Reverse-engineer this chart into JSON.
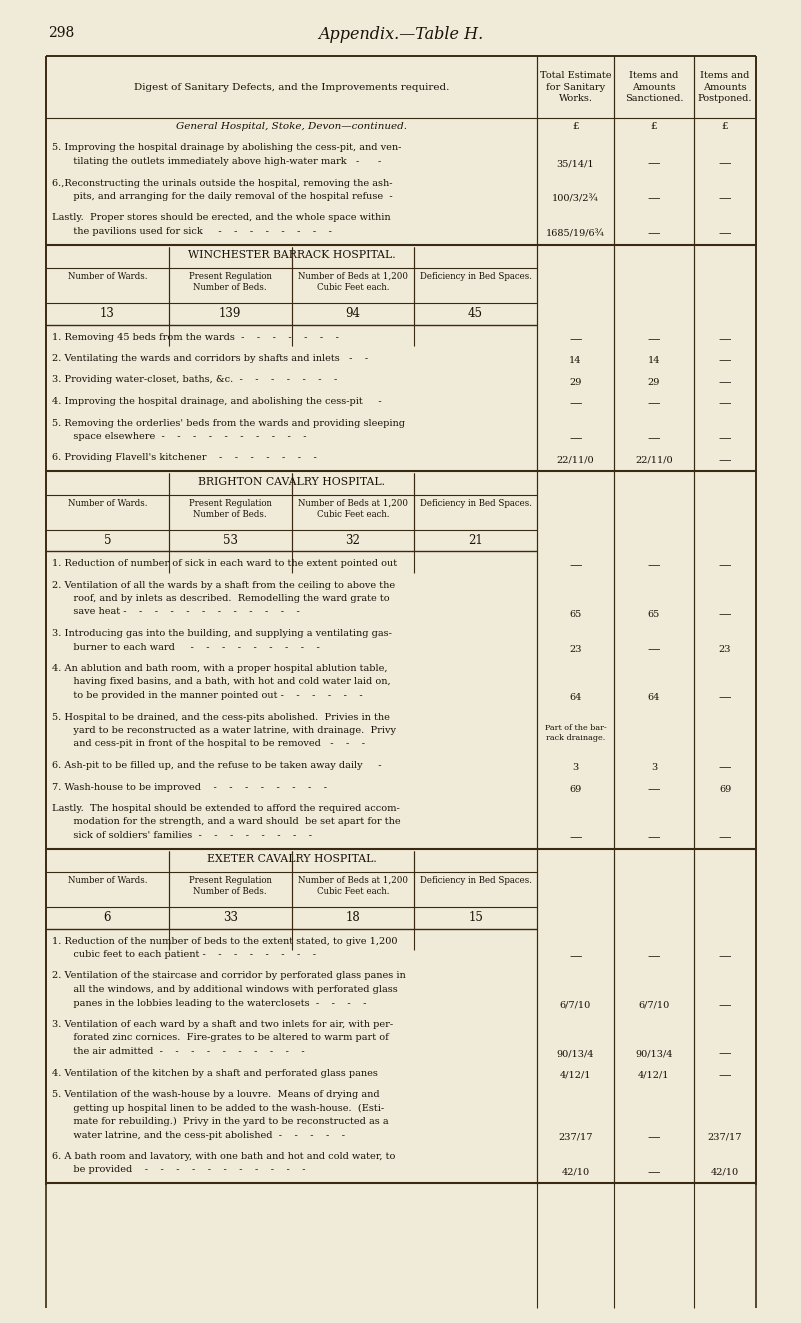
{
  "bg_color": "#f0ead8",
  "text_color": "#1a1008",
  "page_number": "298",
  "page_title": "Appendix.—Table H.",
  "header_col1": "Digest of Sanitary Defects, and the Improvements required.",
  "header_col2": "Total Estimate\nfor Sanitary\nWorks.",
  "header_col3": "Items and\nAmounts\nSanctioned.",
  "header_col4": "Items and\nAmounts\nPostponed.",
  "sections": [
    {
      "type": "general",
      "title": "General Hospital, Stoke, Devon—continued.",
      "currency_row": [
        "£",
        "£",
        "£"
      ],
      "items": [
        {
          "lines": [
            "5. Improving the hospital drainage by abolishing the cess-pit, and ven-",
            "   tilating the outlets immediately above high-water mark   -      -"
          ],
          "col2": "35/14/1",
          "col3": "—",
          "col4": "—",
          "val_line": 1
        },
        {
          "lines": [
            "6.,Reconstructing the urinals outside the hospital, removing the ash-",
            "   pits, and arranging for the daily removal of the hospital refuse  -"
          ],
          "col2": "100/3/2¾",
          "col3": "—",
          "col4": "—",
          "val_line": 1
        },
        {
          "lines": [
            "Lastly.  Proper stores should be erected, and the whole space within",
            "   the pavilions used for sick     -    -    -    -    -    -    -    -"
          ],
          "col2": "1685/19/6¾",
          "col3": "—",
          "col4": "—",
          "val_line": 1
        }
      ]
    },
    {
      "type": "hospital",
      "title": "WINCHESTER BARRACK HOSPITAL.",
      "sub_cols": [
        "Number of Wards.",
        "Present Regulation\nNumber of Beds.",
        "Number of Beds at 1,200\nCubic Feet each.",
        "Deficiency in Bed Spaces."
      ],
      "sub_vals": [
        "13",
        "139",
        "94",
        "45"
      ],
      "items": [
        {
          "lines": [
            "1. Removing 45 beds from the wards  -    -    -    -    -    -    -"
          ],
          "col2": "—",
          "col3": "—",
          "col4": "—",
          "val_line": 0
        },
        {
          "lines": [
            "2. Ventilating the wards and corridors by shafts and inlets   -    -"
          ],
          "col2": "14",
          "col3": "14",
          "col4": "—",
          "val_line": 0
        },
        {
          "lines": [
            "3. Providing water-closet, baths, &c.  -    -    -    -    -    -    -"
          ],
          "col2": "29",
          "col3": "29",
          "col4": "—",
          "val_line": 0
        },
        {
          "lines": [
            "4. Improving the hospital drainage, and abolishing the cess-pit     -"
          ],
          "col2": "—",
          "col3": "—",
          "col4": "—",
          "val_line": 0
        },
        {
          "lines": [
            "5. Removing the orderlies' beds from the wards and providing sleeping",
            "   space elsewhere  -    -    -    -    -    -    -    -    -    -"
          ],
          "col2": "—",
          "col3": "—",
          "col4": "—",
          "val_line": 1
        },
        {
          "lines": [
            "6. Providing Flavell's kitchener    -    -    -    -    -    -    -"
          ],
          "col2": "22/11/0",
          "col3": "22/11/0",
          "col4": "—",
          "val_line": 0
        }
      ]
    },
    {
      "type": "hospital",
      "title": "BRIGHTON CAVALRY HOSPITAL.",
      "sub_cols": [
        "Number of Wards.",
        "Present Regulation\nNumber of Beds.",
        "Number of Beds at 1,200\nCubic Feet each.",
        "Deficiency in Bed Spaces."
      ],
      "sub_vals": [
        "5",
        "53",
        "32",
        "21"
      ],
      "items": [
        {
          "lines": [
            "1. Reduction of number of sick in each ward to the extent pointed out"
          ],
          "col2": "—",
          "col3": "—",
          "col4": "—",
          "val_line": 0
        },
        {
          "lines": [
            "2. Ventilation of all the wards by a shaft from the ceiling to above the",
            "   roof, and by inlets as described.  Remodelling the ward grate to",
            "   save heat -    -    -    -    -    -    -    -    -    -    -    -"
          ],
          "col2": "65",
          "col3": "65",
          "col4": "—",
          "val_line": 2
        },
        {
          "lines": [
            "3. Introducing gas into the building, and supplying a ventilating gas-",
            "   burner to each ward     -    -    -    -    -    -    -    -    -"
          ],
          "col2": "23",
          "col3": "—",
          "col4": "23",
          "val_line": 1
        },
        {
          "lines": [
            "4. An ablution and bath room, with a proper hospital ablution table,",
            "   having fixed basins, and a bath, with hot and cold water laid on,",
            "   to be provided in the manner pointed out -    -    -    -    -    -"
          ],
          "col2": "64",
          "col3": "64",
          "col4": "—",
          "val_line": 2
        },
        {
          "lines": [
            "5. Hospital to be drained, and the cess-pits abolished.  Privies in the",
            "   yard to be reconstructed as a water latrine, with drainage.  Privy",
            "   and cess-pit in front of the hospital to be removed   -    -    -"
          ],
          "col2": "Part of the bar-\nrack drainage.",
          "col3": "",
          "col4": "",
          "val_line": 1
        },
        {
          "lines": [
            "6. Ash-pit to be filled up, and the refuse to be taken away daily     -"
          ],
          "col2": "3",
          "col3": "3",
          "col4": "—",
          "val_line": 0
        },
        {
          "lines": [
            "7. Wash-house to be improved    -    -    -    -    -    -    -    -"
          ],
          "col2": "69",
          "col3": "—",
          "col4": "69",
          "val_line": 0
        },
        {
          "lines": [
            "Lastly.  The hospital should be extended to afford the required accom-",
            "   modation for the strength, and a ward should  be set apart for the",
            "   sick of soldiers' families  -    -    -    -    -    -    -    -"
          ],
          "col2": "—",
          "col3": "—",
          "col4": "—",
          "val_line": 2
        }
      ]
    },
    {
      "type": "hospital",
      "title": "EXETER CAVALRY HOSPITAL.",
      "sub_cols": [
        "Number of Wards.",
        "Present Regulation\nNumber of Beds.",
        "Number of Beds at 1,200\nCubic Feet each.",
        "Deficiency in Bed Spaces."
      ],
      "sub_vals": [
        "6",
        "33",
        "18",
        "15"
      ],
      "items": [
        {
          "lines": [
            "1. Reduction of the number of beds to the extent stated, to give 1,200",
            "   cubic feet to each patient -    -    -    -    -    -    -    -"
          ],
          "col2": "—",
          "col3": "—",
          "col4": "—",
          "val_line": 1
        },
        {
          "lines": [
            "2. Ventilation of the staircase and corridor by perforated glass panes in",
            "   all the windows, and by additional windows with perforated glass",
            "   panes in the lobbies leading to the waterclosets  -    -    -    -"
          ],
          "col2": "6/7/10",
          "col3": "6/7/10",
          "col4": "—",
          "val_line": 2
        },
        {
          "lines": [
            "3. Ventilation of each ward by a shaft and two inlets for air, with per-",
            "   forated zinc cornices.  Fire-grates to be altered to warm part of",
            "   the air admitted  -    -    -    -    -    -    -    -    -    -"
          ],
          "col2": "90/13/4",
          "col3": "90/13/4",
          "col4": "—",
          "val_line": 2
        },
        {
          "lines": [
            "4. Ventilation of the kitchen by a shaft and perforated glass panes"
          ],
          "col2": "4/12/1",
          "col3": "4/12/1",
          "col4": "—",
          "val_line": 0
        },
        {
          "lines": [
            "5. Ventilation of the wash-house by a louvre.  Means of drying and",
            "   getting up hospital linen to be added to the wash-house.  (Esti-",
            "   mate for rebuilding.)  Privy in the yard to be reconstructed as a",
            "   water latrine, and the cess-pit abolished  -    -    -    -    -"
          ],
          "col2": "237/17",
          "col3": "—",
          "col4": "237/17",
          "val_line": 3
        },
        {
          "lines": [
            "6. A bath room and lavatory, with one bath and hot and cold water, to",
            "   be provided    -    -    -    -    -    -    -    -    -    -    -"
          ],
          "col2": "42/10",
          "col3": "—",
          "col4": "42/10",
          "val_line": 1
        }
      ]
    }
  ]
}
